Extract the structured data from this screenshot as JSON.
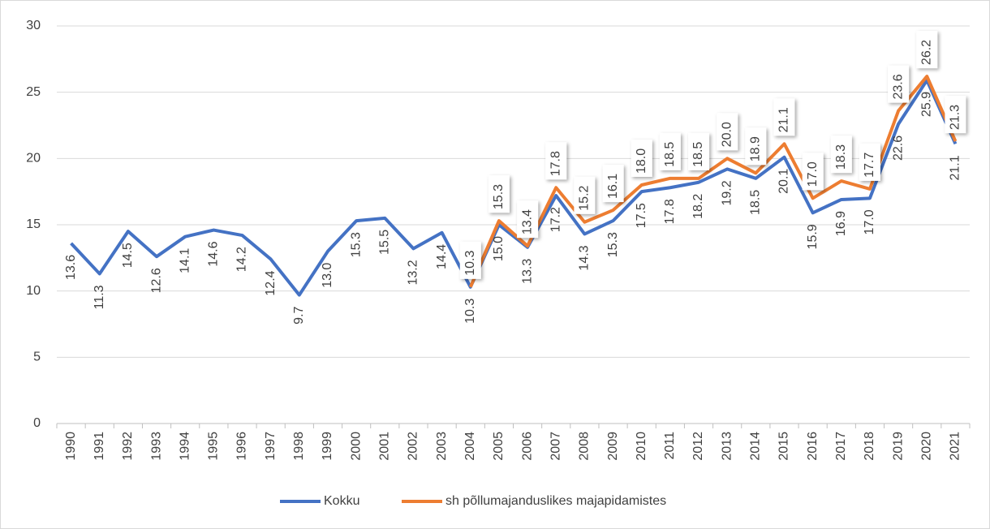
{
  "chart_data": {
    "type": "line",
    "categories": [
      "1990",
      "1991",
      "1992",
      "1993",
      "1994",
      "1995",
      "1996",
      "1997",
      "1998",
      "1999",
      "2000",
      "2001",
      "2002",
      "2003",
      "2004",
      "2005",
      "2006",
      "2007",
      "2008",
      "2009",
      "2010",
      "2011",
      "2012",
      "2013",
      "2014",
      "2015",
      "2016",
      "2017",
      "2018",
      "2019",
      "2020",
      "2021"
    ],
    "series": [
      {
        "name": "Kokku",
        "color": "#4472c4",
        "values": [
          13.6,
          11.3,
          14.5,
          12.6,
          14.1,
          14.6,
          14.2,
          12.4,
          9.7,
          13.0,
          15.3,
          15.5,
          13.2,
          14.4,
          10.3,
          15.0,
          13.3,
          17.2,
          14.3,
          15.3,
          17.5,
          17.8,
          18.2,
          19.2,
          18.5,
          20.1,
          15.9,
          16.9,
          17.0,
          22.6,
          25.9,
          21.1
        ],
        "value_labels": [
          "13.6",
          "11.3",
          "14.5",
          "12.6",
          "14.1",
          "14.6",
          "14.2",
          "12.4",
          "9.7",
          "13.0",
          "15.3",
          "15.5",
          "13.2",
          "14.4",
          "10.3",
          "15.0",
          "13.3",
          "17.2",
          "14.3",
          "15.3",
          "17.5",
          "17.8",
          "18.2",
          "19.2",
          "18.5",
          "20.1",
          "15.9",
          "16.9",
          "17.0",
          "22.6",
          "25.9",
          "21.1"
        ]
      },
      {
        "name": "sh põllumajanduslikes majapidamistes",
        "color": "#ed7d31",
        "values": [
          null,
          null,
          null,
          null,
          null,
          null,
          null,
          null,
          null,
          null,
          null,
          null,
          null,
          null,
          10.3,
          15.3,
          13.4,
          17.8,
          15.2,
          16.1,
          18.0,
          18.5,
          18.5,
          20.0,
          18.9,
          21.1,
          17.0,
          18.3,
          17.7,
          23.6,
          26.2,
          21.3
        ],
        "value_labels": [
          null,
          null,
          null,
          null,
          null,
          null,
          null,
          null,
          null,
          null,
          null,
          null,
          null,
          null,
          "10.3",
          "15.3",
          "13.4",
          "17.8",
          "15.2",
          "16.1",
          "18.0",
          "18.5",
          "18.5",
          "20.0",
          "18.9",
          "21.1",
          "17.0",
          "18.3",
          "17.7",
          "23.6",
          "26.2",
          "21.3"
        ]
      }
    ],
    "ylim": [
      0,
      30
    ],
    "yticks": [
      0,
      5,
      10,
      15,
      20,
      25,
      30
    ],
    "grid": true,
    "legend": "bottom"
  }
}
